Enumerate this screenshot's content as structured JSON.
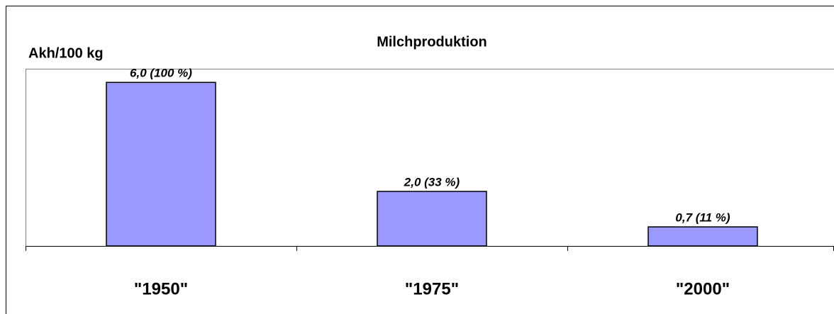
{
  "chart_data": {
    "type": "bar",
    "title": "Milchproduktion",
    "y_label": "Akh/100 kg",
    "categories": [
      "\"1950\"",
      "\"1975\"",
      "\"2000\""
    ],
    "values": [
      6.0,
      2.0,
      0.7
    ],
    "value_labels": [
      "6,0 (100 %)",
      "2,0 (33 %)",
      "0,7 (11 %)"
    ],
    "color": "#9999ff",
    "ylim": [
      0,
      6.5
    ],
    "grid": false
  }
}
